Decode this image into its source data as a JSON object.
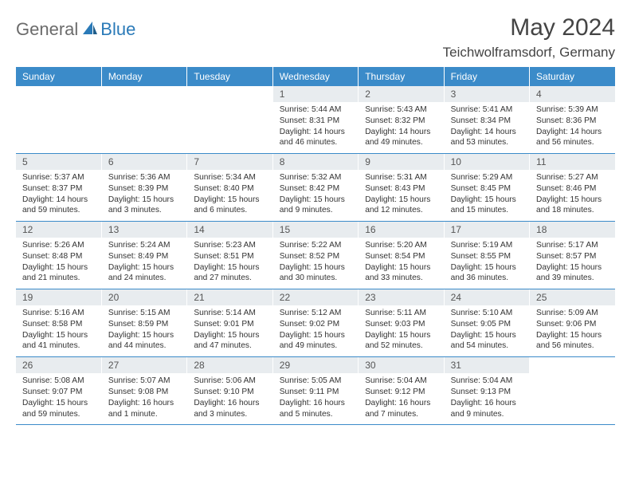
{
  "brand": {
    "general": "General",
    "blue": "Blue"
  },
  "title": "May 2024",
  "location": "Teichwolframsdorf, Germany",
  "colors": {
    "header_bg": "#3b8bc9",
    "header_text": "#ffffff",
    "daynum_bg": "#e8ecef",
    "logo_gray": "#6b6b6b",
    "logo_blue": "#2a7ab8"
  },
  "day_headers": [
    "Sunday",
    "Monday",
    "Tuesday",
    "Wednesday",
    "Thursday",
    "Friday",
    "Saturday"
  ],
  "weeks": [
    {
      "nums": [
        "",
        "",
        "",
        "1",
        "2",
        "3",
        "4"
      ],
      "cells": [
        null,
        null,
        null,
        {
          "sunrise": "Sunrise: 5:44 AM",
          "sunset": "Sunset: 8:31 PM",
          "daylight": "Daylight: 14 hours and 46 minutes."
        },
        {
          "sunrise": "Sunrise: 5:43 AM",
          "sunset": "Sunset: 8:32 PM",
          "daylight": "Daylight: 14 hours and 49 minutes."
        },
        {
          "sunrise": "Sunrise: 5:41 AM",
          "sunset": "Sunset: 8:34 PM",
          "daylight": "Daylight: 14 hours and 53 minutes."
        },
        {
          "sunrise": "Sunrise: 5:39 AM",
          "sunset": "Sunset: 8:36 PM",
          "daylight": "Daylight: 14 hours and 56 minutes."
        }
      ]
    },
    {
      "nums": [
        "5",
        "6",
        "7",
        "8",
        "9",
        "10",
        "11"
      ],
      "cells": [
        {
          "sunrise": "Sunrise: 5:37 AM",
          "sunset": "Sunset: 8:37 PM",
          "daylight": "Daylight: 14 hours and 59 minutes."
        },
        {
          "sunrise": "Sunrise: 5:36 AM",
          "sunset": "Sunset: 8:39 PM",
          "daylight": "Daylight: 15 hours and 3 minutes."
        },
        {
          "sunrise": "Sunrise: 5:34 AM",
          "sunset": "Sunset: 8:40 PM",
          "daylight": "Daylight: 15 hours and 6 minutes."
        },
        {
          "sunrise": "Sunrise: 5:32 AM",
          "sunset": "Sunset: 8:42 PM",
          "daylight": "Daylight: 15 hours and 9 minutes."
        },
        {
          "sunrise": "Sunrise: 5:31 AM",
          "sunset": "Sunset: 8:43 PM",
          "daylight": "Daylight: 15 hours and 12 minutes."
        },
        {
          "sunrise": "Sunrise: 5:29 AM",
          "sunset": "Sunset: 8:45 PM",
          "daylight": "Daylight: 15 hours and 15 minutes."
        },
        {
          "sunrise": "Sunrise: 5:27 AM",
          "sunset": "Sunset: 8:46 PM",
          "daylight": "Daylight: 15 hours and 18 minutes."
        }
      ]
    },
    {
      "nums": [
        "12",
        "13",
        "14",
        "15",
        "16",
        "17",
        "18"
      ],
      "cells": [
        {
          "sunrise": "Sunrise: 5:26 AM",
          "sunset": "Sunset: 8:48 PM",
          "daylight": "Daylight: 15 hours and 21 minutes."
        },
        {
          "sunrise": "Sunrise: 5:24 AM",
          "sunset": "Sunset: 8:49 PM",
          "daylight": "Daylight: 15 hours and 24 minutes."
        },
        {
          "sunrise": "Sunrise: 5:23 AM",
          "sunset": "Sunset: 8:51 PM",
          "daylight": "Daylight: 15 hours and 27 minutes."
        },
        {
          "sunrise": "Sunrise: 5:22 AM",
          "sunset": "Sunset: 8:52 PM",
          "daylight": "Daylight: 15 hours and 30 minutes."
        },
        {
          "sunrise": "Sunrise: 5:20 AM",
          "sunset": "Sunset: 8:54 PM",
          "daylight": "Daylight: 15 hours and 33 minutes."
        },
        {
          "sunrise": "Sunrise: 5:19 AM",
          "sunset": "Sunset: 8:55 PM",
          "daylight": "Daylight: 15 hours and 36 minutes."
        },
        {
          "sunrise": "Sunrise: 5:17 AM",
          "sunset": "Sunset: 8:57 PM",
          "daylight": "Daylight: 15 hours and 39 minutes."
        }
      ]
    },
    {
      "nums": [
        "19",
        "20",
        "21",
        "22",
        "23",
        "24",
        "25"
      ],
      "cells": [
        {
          "sunrise": "Sunrise: 5:16 AM",
          "sunset": "Sunset: 8:58 PM",
          "daylight": "Daylight: 15 hours and 41 minutes."
        },
        {
          "sunrise": "Sunrise: 5:15 AM",
          "sunset": "Sunset: 8:59 PM",
          "daylight": "Daylight: 15 hours and 44 minutes."
        },
        {
          "sunrise": "Sunrise: 5:14 AM",
          "sunset": "Sunset: 9:01 PM",
          "daylight": "Daylight: 15 hours and 47 minutes."
        },
        {
          "sunrise": "Sunrise: 5:12 AM",
          "sunset": "Sunset: 9:02 PM",
          "daylight": "Daylight: 15 hours and 49 minutes."
        },
        {
          "sunrise": "Sunrise: 5:11 AM",
          "sunset": "Sunset: 9:03 PM",
          "daylight": "Daylight: 15 hours and 52 minutes."
        },
        {
          "sunrise": "Sunrise: 5:10 AM",
          "sunset": "Sunset: 9:05 PM",
          "daylight": "Daylight: 15 hours and 54 minutes."
        },
        {
          "sunrise": "Sunrise: 5:09 AM",
          "sunset": "Sunset: 9:06 PM",
          "daylight": "Daylight: 15 hours and 56 minutes."
        }
      ]
    },
    {
      "nums": [
        "26",
        "27",
        "28",
        "29",
        "30",
        "31",
        ""
      ],
      "cells": [
        {
          "sunrise": "Sunrise: 5:08 AM",
          "sunset": "Sunset: 9:07 PM",
          "daylight": "Daylight: 15 hours and 59 minutes."
        },
        {
          "sunrise": "Sunrise: 5:07 AM",
          "sunset": "Sunset: 9:08 PM",
          "daylight": "Daylight: 16 hours and 1 minute."
        },
        {
          "sunrise": "Sunrise: 5:06 AM",
          "sunset": "Sunset: 9:10 PM",
          "daylight": "Daylight: 16 hours and 3 minutes."
        },
        {
          "sunrise": "Sunrise: 5:05 AM",
          "sunset": "Sunset: 9:11 PM",
          "daylight": "Daylight: 16 hours and 5 minutes."
        },
        {
          "sunrise": "Sunrise: 5:04 AM",
          "sunset": "Sunset: 9:12 PM",
          "daylight": "Daylight: 16 hours and 7 minutes."
        },
        {
          "sunrise": "Sunrise: 5:04 AM",
          "sunset": "Sunset: 9:13 PM",
          "daylight": "Daylight: 16 hours and 9 minutes."
        },
        null
      ]
    }
  ]
}
